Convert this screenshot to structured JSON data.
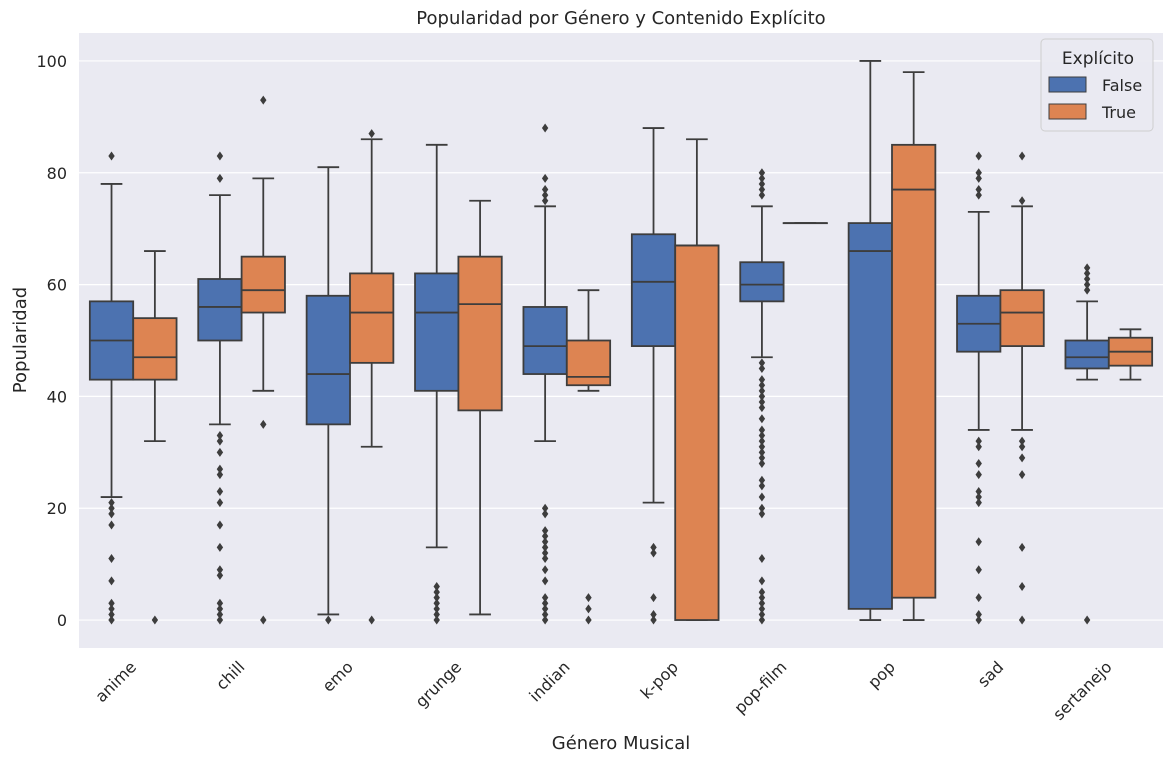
{
  "chart_data": {
    "type": "box",
    "title": "Popularidad por Género y Contenido Explícito",
    "xlabel": "Género Musical",
    "ylabel": "Popularidad",
    "ylim": [
      -5,
      105
    ],
    "yticks": [
      0,
      20,
      40,
      60,
      80,
      100
    ],
    "grid": true,
    "categories": [
      "anime",
      "chill",
      "emo",
      "grunge",
      "indian",
      "k-pop",
      "pop-film",
      "pop",
      "sad",
      "sertanejo"
    ],
    "legend": {
      "title": "Explícito",
      "placement": "top-right"
    },
    "series": [
      {
        "name": "False",
        "color": "#4c72b0",
        "boxes": [
          {
            "whislo": 22,
            "q1": 43,
            "med": 50,
            "q3": 57,
            "whishi": 78,
            "fliers": [
              83,
              21,
              20,
              19,
              17,
              11,
              7,
              3,
              2,
              1,
              0
            ]
          },
          {
            "whislo": 35,
            "q1": 50,
            "med": 56,
            "q3": 61,
            "whishi": 76,
            "fliers": [
              83,
              79,
              33,
              32,
              30,
              27,
              26,
              23,
              21,
              17,
              13,
              9,
              8,
              3,
              2,
              1,
              0
            ]
          },
          {
            "whislo": 1,
            "q1": 35,
            "med": 44,
            "q3": 58,
            "whishi": 81,
            "fliers": [
              0
            ]
          },
          {
            "whislo": 13,
            "q1": 41,
            "med": 55,
            "q3": 62,
            "whishi": 85,
            "fliers": [
              6,
              5,
              4,
              3,
              2,
              1,
              0
            ]
          },
          {
            "whislo": 32,
            "q1": 44,
            "med": 49,
            "q3": 56,
            "whishi": 74,
            "fliers": [
              88,
              79,
              77,
              76,
              75,
              20,
              19,
              16,
              15,
              14,
              13,
              12,
              11,
              9,
              7,
              4,
              3,
              2,
              1,
              0
            ]
          },
          {
            "whislo": 21,
            "q1": 49,
            "med": 60.5,
            "q3": 69,
            "whishi": 88,
            "fliers": [
              13,
              12,
              4,
              1,
              0
            ]
          },
          {
            "whislo": 47,
            "q1": 57,
            "med": 60,
            "q3": 64,
            "whishi": 74,
            "fliers": [
              80,
              79,
              78,
              77,
              76,
              46,
              45,
              43,
              42,
              41,
              40,
              39,
              38,
              36,
              34,
              33,
              32,
              31,
              30,
              29,
              28,
              25,
              24,
              22,
              20,
              19,
              11,
              7,
              5,
              4,
              3,
              2,
              1,
              0
            ]
          },
          {
            "whislo": 0,
            "q1": 2,
            "med": 66,
            "q3": 71,
            "whishi": 100,
            "fliers": []
          },
          {
            "whislo": 34,
            "q1": 48,
            "med": 53,
            "q3": 58,
            "whishi": 73,
            "fliers": [
              83,
              80,
              79,
              77,
              76,
              32,
              31,
              28,
              26,
              23,
              22,
              21,
              14,
              9,
              4,
              1,
              0
            ]
          },
          {
            "whislo": 43,
            "q1": 45,
            "med": 47,
            "q3": 50,
            "whishi": 57,
            "fliers": [
              63,
              62,
              61,
              60,
              59,
              0
            ]
          }
        ]
      },
      {
        "name": "True",
        "color": "#dd8452",
        "boxes": [
          {
            "whislo": 32,
            "q1": 43,
            "med": 47,
            "q3": 54,
            "whishi": 66,
            "fliers": [
              0
            ]
          },
          {
            "whislo": 41,
            "q1": 55,
            "med": 59,
            "q3": 65,
            "whishi": 79,
            "fliers": [
              93,
              35,
              0
            ]
          },
          {
            "whislo": 31,
            "q1": 46,
            "med": 55,
            "q3": 62,
            "whishi": 86,
            "fliers": [
              87,
              0
            ]
          },
          {
            "whislo": 1,
            "q1": 37.5,
            "med": 56.5,
            "q3": 65,
            "whishi": 75,
            "fliers": []
          },
          {
            "whislo": 41,
            "q1": 42,
            "med": 43.5,
            "q3": 50,
            "whishi": 59,
            "fliers": [
              4,
              2,
              0
            ]
          },
          {
            "whislo": 0,
            "q1": 0,
            "med": 67,
            "q3": 67,
            "whishi": 86,
            "fliers": []
          },
          {
            "whislo": 71,
            "q1": 71,
            "med": 71,
            "q3": 71,
            "whishi": 71,
            "fliers": []
          },
          {
            "whislo": 0,
            "q1": 4,
            "med": 77,
            "q3": 85,
            "whishi": 98,
            "fliers": []
          },
          {
            "whislo": 34,
            "q1": 49,
            "med": 55,
            "q3": 59,
            "whishi": 74,
            "fliers": [
              83,
              75,
              32,
              31,
              29,
              26,
              13,
              6,
              0
            ]
          },
          {
            "whislo": 43,
            "q1": 45.5,
            "med": 48,
            "q3": 50.5,
            "whishi": 52,
            "fliers": []
          }
        ]
      }
    ]
  }
}
